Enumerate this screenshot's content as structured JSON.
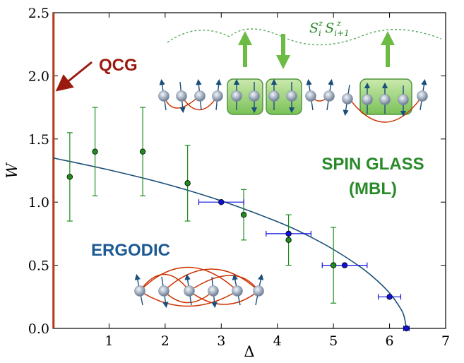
{
  "chart_data": {
    "type": "scatter",
    "title": "",
    "xlabel": "Δ",
    "ylabel": "W",
    "xlim": [
      0,
      7
    ],
    "ylim": [
      0,
      2.5
    ],
    "xticks": [
      "1",
      "2",
      "3",
      "4",
      "5",
      "6",
      "7"
    ],
    "yticks": [
      "0.0",
      "0.5",
      "1.0",
      "1.5",
      "2.0",
      "2.5"
    ],
    "grid": false,
    "series": [
      {
        "color": "#1e8c1e",
        "points": [
          {
            "x": 0.3,
            "y": 1.2,
            "ylow": 0.85,
            "yhigh": 1.55
          },
          {
            "x": 0.75,
            "y": 1.4,
            "ylow": 1.05,
            "yhigh": 1.75
          },
          {
            "x": 1.6,
            "y": 1.4,
            "ylow": 1.05,
            "yhigh": 1.75
          },
          {
            "x": 2.4,
            "y": 1.15,
            "ylow": 0.85,
            "yhigh": 1.45
          },
          {
            "x": 3.4,
            "y": 0.9,
            "ylow": 0.7,
            "yhigh": 1.1
          },
          {
            "x": 4.2,
            "y": 0.7,
            "ylow": 0.5,
            "yhigh": 0.9
          },
          {
            "x": 5.0,
            "y": 0.5,
            "ylow": 0.2,
            "yhigh": 0.8
          }
        ]
      },
      {
        "color": "#1010dd",
        "points": [
          {
            "x": 3.0,
            "y": 1.0,
            "xlow": 2.6,
            "xhigh": 3.4
          },
          {
            "x": 4.2,
            "y": 0.75,
            "xlow": 3.8,
            "xhigh": 4.6
          },
          {
            "x": 5.2,
            "y": 0.5,
            "xlow": 4.8,
            "xhigh": 5.6
          },
          {
            "x": 6.0,
            "y": 0.25,
            "xlow": 5.8,
            "xhigh": 6.2
          },
          {
            "x": 6.3,
            "y": 0.0,
            "xlow": 6.25,
            "xhigh": 6.35
          }
        ]
      }
    ],
    "boundary_curve": {
      "color": "#1a4f7a",
      "points": [
        [
          0,
          1.35
        ],
        [
          1,
          1.255
        ],
        [
          2,
          1.145
        ],
        [
          3,
          1.01
        ],
        [
          4,
          0.845
        ],
        [
          4.5,
          0.745
        ],
        [
          5,
          0.625
        ],
        [
          5.5,
          0.48
        ],
        [
          5.8,
          0.37
        ],
        [
          6,
          0.28
        ],
        [
          6.15,
          0.19
        ],
        [
          6.25,
          0.11
        ],
        [
          6.3,
          0.0
        ]
      ]
    },
    "qcg_line": {
      "x": 0,
      "ymin": 0,
      "ymax": 2.5,
      "color": "#cc3300"
    },
    "annotations": [
      {
        "text": "QCG",
        "color": "#9b1a10"
      },
      {
        "text": "SPIN GLASS",
        "color": "#2a8a2a"
      },
      {
        "text": "(MBL)",
        "color": "#2a8a2a"
      },
      {
        "text": "ERGODIC",
        "color": "#1d5a94"
      },
      {
        "text": "S_i^z S_{i+1}^z",
        "color": "#2a8a2a"
      }
    ]
  },
  "inset_icons": {
    "spin_icon": "spin-arrow-icon",
    "up_arrow_icon": "green-up-arrow-icon",
    "down_arrow_icon": "green-down-arrow-icon"
  }
}
